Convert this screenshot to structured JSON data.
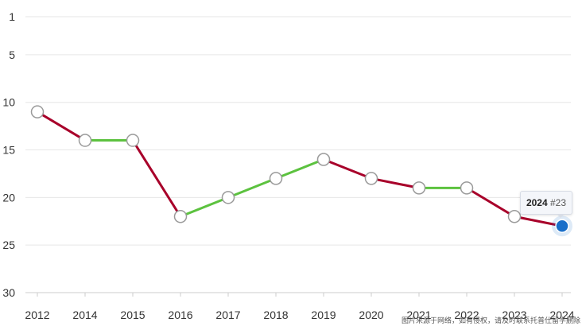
{
  "chart_data": {
    "type": "line",
    "title": "",
    "xlabel": "",
    "ylabel": "",
    "categories": [
      "2012",
      "2014",
      "2015",
      "2016",
      "2017",
      "2018",
      "2019",
      "2020",
      "2021",
      "2022",
      "2023",
      "2024"
    ],
    "values": [
      11,
      14,
      14,
      22,
      20,
      18,
      16,
      18,
      19,
      19,
      22,
      23
    ],
    "yticks": [
      1,
      5,
      10,
      15,
      20,
      25,
      30
    ],
    "ylim": [
      1,
      30
    ],
    "y_reversed": true,
    "grid": true,
    "colors": {
      "worse": "#a8002a",
      "better": "#5cc23f",
      "point_fill": "#ffffff",
      "point_stroke": "#9a9a9a",
      "highlight": "#1a6fc9",
      "grid": "#e6e6e6"
    },
    "highlight_index": 11
  },
  "tooltip": {
    "year": "2024",
    "rank": "#23"
  },
  "watermark": "图片来源于网络，如有侵权，请及时联系托普仕留学删除"
}
